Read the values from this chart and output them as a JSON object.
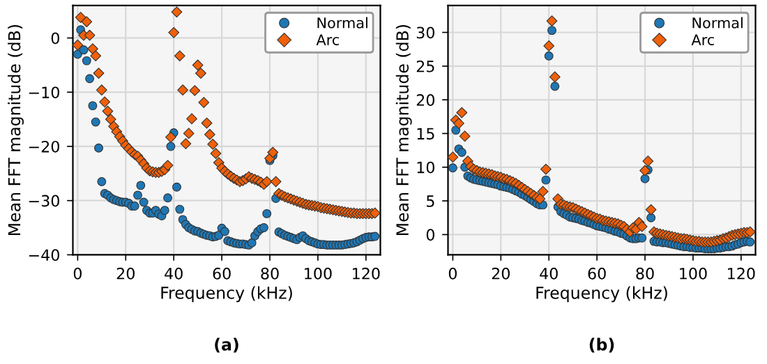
{
  "chart_data": [
    {
      "type": "scatter",
      "title": "(a)",
      "xlabel": "Frequency (kHz)",
      "ylabel": "Mean FFT magnitude (dB)",
      "x": [
        0,
        1.25,
        2.5,
        3.75,
        5,
        6.25,
        7.5,
        8.75,
        10,
        11.25,
        12.5,
        13.75,
        15,
        16.25,
        17.5,
        18.75,
        20,
        21.25,
        22.5,
        23.75,
        25,
        26.25,
        27.5,
        28.75,
        30,
        31.25,
        32.5,
        33.75,
        35,
        36.25,
        37.5,
        38.75,
        40,
        41.25,
        42.5,
        43.75,
        45,
        46.25,
        47.5,
        48.75,
        50,
        51.25,
        52.5,
        53.75,
        55,
        56.25,
        57.5,
        58.75,
        60,
        61.25,
        62.5,
        63.75,
        65,
        66.25,
        67.5,
        68.75,
        70,
        71.25,
        72.5,
        73.75,
        75,
        76.25,
        77.5,
        78.75,
        80,
        81.25,
        82.5,
        83.75,
        85,
        86.25,
        87.5,
        88.75,
        90,
        91.25,
        92.5,
        93.75,
        95,
        96.25,
        97.5,
        98.75,
        100,
        101.25,
        102.5,
        103.75,
        105,
        106.25,
        107.5,
        108.75,
        110,
        111.25,
        112.5,
        113.75,
        115,
        116.25,
        117.5,
        118.75,
        120,
        121.25,
        122.5,
        123.75
      ],
      "series": [
        {
          "name": "Normal",
          "color": "#1f77b4",
          "marker": "circle",
          "values": [
            -3,
            1.5,
            -2.2,
            -4.2,
            -7.5,
            -12.5,
            -15.5,
            -20.3,
            -26.5,
            -28.7,
            -29,
            -29.5,
            -29.8,
            -30,
            -30.2,
            -30.3,
            -30.3,
            -30.5,
            -31,
            -31,
            -29,
            -27.2,
            -30.3,
            -31.8,
            -32.3,
            -32.3,
            -31.8,
            -32.5,
            -32.8,
            -31.8,
            -29.5,
            -20,
            -17.5,
            -27.5,
            -31.6,
            -33.5,
            -34.4,
            -35,
            -35.3,
            -35.6,
            -35.7,
            -36,
            -36.2,
            -36.4,
            -36.5,
            -36.7,
            -36.6,
            -36.4,
            -35.1,
            -35.7,
            -37.4,
            -37.6,
            -37.8,
            -37.9,
            -38,
            -38,
            -38.1,
            -38.2,
            -37.8,
            -36.5,
            -35.7,
            -35.2,
            -35,
            -32.4,
            -22.6,
            -21.7,
            -29.6,
            -35.8,
            -36.1,
            -36.4,
            -36.6,
            -36.8,
            -37,
            -37.2,
            -36.8,
            -36.5,
            -37,
            -37.4,
            -37.6,
            -37.8,
            -38,
            -38.1,
            -38.1,
            -38.2,
            -38.2,
            -38.2,
            -38.2,
            -38.2,
            -38.2,
            -38.1,
            -38,
            -37.9,
            -37.8,
            -37.6,
            -37.3,
            -37,
            -36.8,
            -36.7,
            -36.7,
            -36.6
          ]
        },
        {
          "name": "Arc",
          "color": "#f0600a",
          "marker": "diamond",
          "values": [
            -1.3,
            3.8,
            0.5,
            3.0,
            0.5,
            -2,
            -3.3,
            -6.5,
            -9.6,
            -11.8,
            -13.5,
            -15,
            -16.3,
            -17.3,
            -18.2,
            -19,
            -19.8,
            -20.4,
            -21,
            -21.5,
            -21.8,
            -22.5,
            -23.2,
            -24,
            -24.5,
            -24.7,
            -24.8,
            -24.8,
            -24.6,
            -24.3,
            -23.5,
            -18.3,
            1.0,
            4.8,
            -3.3,
            -9.6,
            -19.5,
            -17.6,
            -14.9,
            -9.7,
            -5,
            -6.5,
            -11.9,
            -15.7,
            -17.8,
            -19.6,
            -21.3,
            -23,
            -24,
            -24.6,
            -25.1,
            -25.5,
            -25.9,
            -26.2,
            -26.5,
            -26.3,
            -26,
            -25.6,
            -25.9,
            -26.1,
            -26.3,
            -26.6,
            -27,
            -26.5,
            -22.2,
            -21.1,
            -26.5,
            -28.7,
            -29,
            -29.3,
            -29.5,
            -29.7,
            -29.9,
            -30.1,
            -30.3,
            -30.5,
            -30.7,
            -30.8,
            -30.9,
            -31,
            -31.1,
            -31.3,
            -31.4,
            -31.5,
            -31.6,
            -31.7,
            -31.8,
            -31.9,
            -32,
            -32.1,
            -32.2,
            -32.3,
            -32.3,
            -32.4,
            -32.4,
            -32.4,
            -32.4,
            -32.4,
            -32.4,
            -32.3
          ]
        }
      ],
      "xlim": [
        -2,
        126
      ],
      "xticks": [
        0,
        20,
        40,
        60,
        80,
        100,
        120
      ],
      "ylim": [
        -40,
        6
      ],
      "yticks": [
        -40,
        -30,
        -20,
        -10,
        0
      ],
      "grid": true,
      "legend": "top right"
    },
    {
      "type": "scatter",
      "title": "(b)",
      "xlabel": "Frequency (kHz)",
      "ylabel": "Mean FFT magnitude (dB)",
      "x": [
        0,
        1.25,
        2.5,
        3.75,
        5,
        6.25,
        7.5,
        8.75,
        10,
        11.25,
        12.5,
        13.75,
        15,
        16.25,
        17.5,
        18.75,
        20,
        21.25,
        22.5,
        23.75,
        25,
        26.25,
        27.5,
        28.75,
        30,
        31.25,
        32.5,
        33.75,
        35,
        36.25,
        37.5,
        38.75,
        40,
        41.25,
        42.5,
        43.75,
        45,
        46.25,
        47.5,
        48.75,
        50,
        51.25,
        52.5,
        53.75,
        55,
        56.25,
        57.5,
        58.75,
        60,
        61.25,
        62.5,
        63.75,
        65,
        66.25,
        67.5,
        68.75,
        70,
        71.25,
        72.5,
        73.75,
        75,
        76.25,
        77.5,
        78.75,
        80,
        81.25,
        82.5,
        83.75,
        85,
        86.25,
        87.5,
        88.75,
        90,
        91.25,
        92.5,
        93.75,
        95,
        96.25,
        97.5,
        98.75,
        100,
        101.25,
        102.5,
        103.75,
        105,
        106.25,
        107.5,
        108.75,
        110,
        111.25,
        112.5,
        113.75,
        115,
        116.25,
        117.5,
        118.75,
        120,
        121.25,
        122.5,
        123.75
      ],
      "series": [
        {
          "name": "Normal",
          "color": "#1f77b4",
          "marker": "circle",
          "values": [
            9.9,
            15.5,
            12.7,
            12.2,
            10,
            8.7,
            8.4,
            8.2,
            8.1,
            8.0,
            7.9,
            7.8,
            7.7,
            7.6,
            7.5,
            7.4,
            7.2,
            7.1,
            7.0,
            6.9,
            6.7,
            6.5,
            6.3,
            6.0,
            5.8,
            5.5,
            5.2,
            4.9,
            4.6,
            4.4,
            4.4,
            8.1,
            26.5,
            30.3,
            22,
            4.1,
            3.4,
            3.1,
            2.9,
            2.6,
            2.5,
            2.4,
            2.3,
            2.1,
            2.0,
            1.8,
            1.7,
            1.5,
            1.3,
            1.2,
            1.1,
            1.0,
            0.8,
            0.7,
            0.5,
            0.4,
            0.2,
            0.1,
            -0.2,
            -0.5,
            -0.6,
            -0.6,
            -0.5,
            -0.5,
            8.3,
            9.6,
            2.5,
            -1,
            -1.1,
            -1.1,
            -1.2,
            -1.2,
            -1.3,
            -1.4,
            -1.5,
            -1.6,
            -1.7,
            -1.8,
            -1.8,
            -1.9,
            -1.9,
            -2,
            -2,
            -2,
            -2.1,
            -2.1,
            -2.1,
            -2.1,
            -2,
            -2,
            -1.9,
            -1.8,
            -1.8,
            -1.7,
            -1.5,
            -1.4,
            -1.2,
            -1.1,
            -1,
            -1.1
          ]
        },
        {
          "name": "Arc",
          "color": "#f0600a",
          "marker": "diamond",
          "values": [
            11.5,
            17,
            16.5,
            18.1,
            14.6,
            10.9,
            10.1,
            9.7,
            9.5,
            9.3,
            9.2,
            9.1,
            9.0,
            8.9,
            8.7,
            8.6,
            8.5,
            8.3,
            8.2,
            8.0,
            7.8,
            7.6,
            7.3,
            7.0,
            6.7,
            6.4,
            6.1,
            5.8,
            5.5,
            5.3,
            6.4,
            9.7,
            28,
            31.7,
            23.4,
            5.3,
            4.5,
            4.4,
            4.2,
            4.1,
            4.0,
            3.8,
            3.6,
            3.4,
            3.2,
            3.0,
            2.8,
            2.6,
            2.4,
            2.3,
            2.1,
            2.0,
            1.9,
            1.8,
            1.7,
            1.6,
            1.4,
            1.2,
            0.8,
            0.4,
            1.0,
            0.8,
            1.8,
            1.2,
            9.5,
            10.9,
            3.7,
            0.4,
            0.2,
            0.1,
            0,
            -0.1,
            -0.2,
            -0.3,
            -0.4,
            -0.5,
            -0.6,
            -0.6,
            -0.7,
            -0.8,
            -0.9,
            -1,
            -1,
            -1.1,
            -1.1,
            -1.1,
            -1.1,
            -1,
            -0.9,
            -0.8,
            -0.6,
            -0.5,
            -0.3,
            -0.1,
            0,
            0.1,
            0.2,
            0.3,
            0.3,
            0.4
          ]
        }
      ],
      "xlim": [
        -2,
        126
      ],
      "xticks": [
        0,
        20,
        40,
        60,
        80,
        100,
        120
      ],
      "ylim": [
        -3,
        34
      ],
      "yticks": [
        0,
        5,
        10,
        15,
        20,
        25,
        30
      ],
      "grid": true,
      "legend": "top right"
    }
  ]
}
